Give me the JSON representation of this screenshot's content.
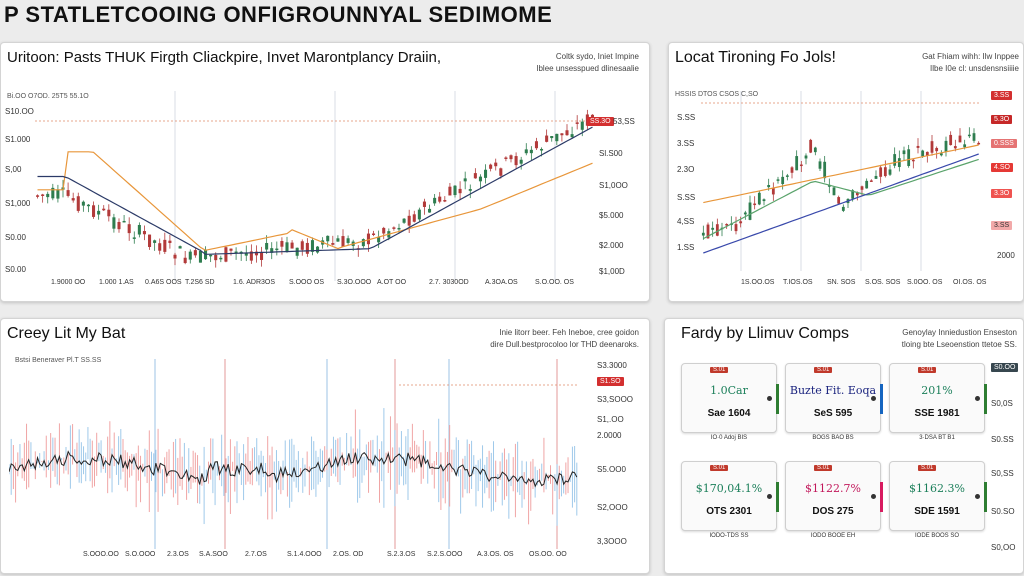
{
  "app": {
    "title": "P STATLETCOOING ONFIGROUNNYAL SEDIMOME"
  },
  "panels": {
    "top_left": {
      "title": "Uritoon: Pasts THUK Firgth Cliackpire, Invet Marontplancy Draiin,",
      "meta": [
        "Coltk sydo, Iniet Impine",
        "Iblee unsesspued dlinesaalie"
      ],
      "toolbar": "Bi.OO   O7OD. 25T5   55.1O",
      "y_ticks": [
        "S10.OO",
        "S1.000",
        "S,00",
        "S1,000",
        "S0.00",
        "S0.00"
      ],
      "x_ticks": [
        "1.9000 OO",
        "1.000 1.AS",
        "0.A6S OOS",
        "T.2S6 SD",
        "1.6. ADR3OS",
        "S.OOO OS",
        "S.3O.OOO",
        "A.OT OO",
        "2.7. 3030OD",
        "A.3OA.OS",
        "S.O.OO. OS"
      ],
      "right_ticks": [
        "53,SS",
        "Sl.S00",
        "S1,0OO",
        "$5.000",
        "$2.000",
        "$1,00D"
      ],
      "price_tag": "SS.3O",
      "price_tag_color": "#d32f2f"
    },
    "top_right": {
      "title": "Locat Tironing Fo Jols!",
      "meta": [
        "Gat Fhiam wihh: Ilw Inppee",
        "Ilbe I0e cl: unsdensnsiiiie"
      ],
      "toolbar": "HSSIS   DTOS CSOS   C,SO",
      "y_ticks": [
        "S.SS",
        "3.SS",
        "2.3O",
        "S.SS",
        "4,SS",
        "1.SS"
      ],
      "x_ticks": [
        "1S.OO.OS",
        "T.IOS.OS",
        "SN. SOS",
        "S.OS. SOS",
        "S.0OO. OS",
        "OI.OS. OS"
      ],
      "right_tags": [
        "3.SS",
        "5.3O",
        "0.SSS",
        "4.SO",
        "3.3O",
        "3.SS"
      ],
      "right_tag_colors": [
        "#d32f2f",
        "#c62828",
        "#e57373",
        "#e53935",
        "#ef5350",
        "#f2a9a9"
      ],
      "right_label": "2000"
    },
    "bottom_left": {
      "title": "Creey Lit My Bat",
      "meta": [
        "Inie litorr beer. Feh Ineboe, cree goidon",
        "dire Dull.bestprocoloo lor THD deenaroks."
      ],
      "toolbar": "Bstsi Beneraver   Pl.T   SS.SS",
      "right_ticks": [
        "S3.3000",
        "S3,SOOO",
        "S1,.OO",
        "2.0000",
        "S5.OO0",
        "S2,OOO",
        "3,3OOO"
      ],
      "price_tag": "S1.SO",
      "price_tag_color": "#d32f2f",
      "x_ticks": [
        "S.OOO.OO",
        "S.O.OOO",
        "2.3.OS",
        "S.A.SOO",
        "2.7.OS",
        "S.1.4.OOO",
        "2.OS. OD",
        "S.2.3.OS",
        "S.2.S.OOO",
        "A.3.OS. OS",
        "OS.OO. OO"
      ]
    },
    "bottom_right": {
      "title": "Fardy by Llimuv Comps",
      "meta": [
        "Genoylay Inniedustion Enseston",
        "tloing bte Lseoenstion ttetoe SS."
      ],
      "right_tags": [
        "S0.OO",
        "S0,0S",
        "S0.SS",
        "S0,SS",
        "S0.SO",
        "S0,OO"
      ],
      "cards": [
        {
          "badge": "S.01",
          "value": "1.0Car",
          "value_color": "#1b7f5a",
          "sub": "Sae 1604",
          "caption": "IO·0 Adoj BIS",
          "accent": "#2e7d32"
        },
        {
          "badge": "S.01",
          "value": "Buzte Fit. Eoqa",
          "value_color": "#1a237e",
          "sub": "SeS 595",
          "caption": "BOGS BAO BS",
          "accent": "#1565c0"
        },
        {
          "badge": "S.01",
          "value": "201%",
          "value_color": "#1b7f5a",
          "sub": "SSE 1981",
          "caption": "3·DSA BT B1",
          "accent": "#2e7d32"
        },
        {
          "badge": "S.01",
          "value": "$170,04.1%",
          "value_color": "#1b7f5a",
          "sub": "OTS 2301",
          "caption": "IODO-TDS SS",
          "accent": "#2e7d32"
        },
        {
          "badge": "S.01",
          "value": "$1122.7%",
          "value_color": "#c2185b",
          "sub": "DOS 275",
          "caption": "IODO BOOE EH",
          "accent": "#d81b60"
        },
        {
          "badge": "S.01",
          "value": "$1162.3%",
          "value_color": "#1b7f5a",
          "sub": "SDE 1591",
          "caption": "IODE BOOS SO",
          "accent": "#2e7d32"
        }
      ]
    }
  }
}
